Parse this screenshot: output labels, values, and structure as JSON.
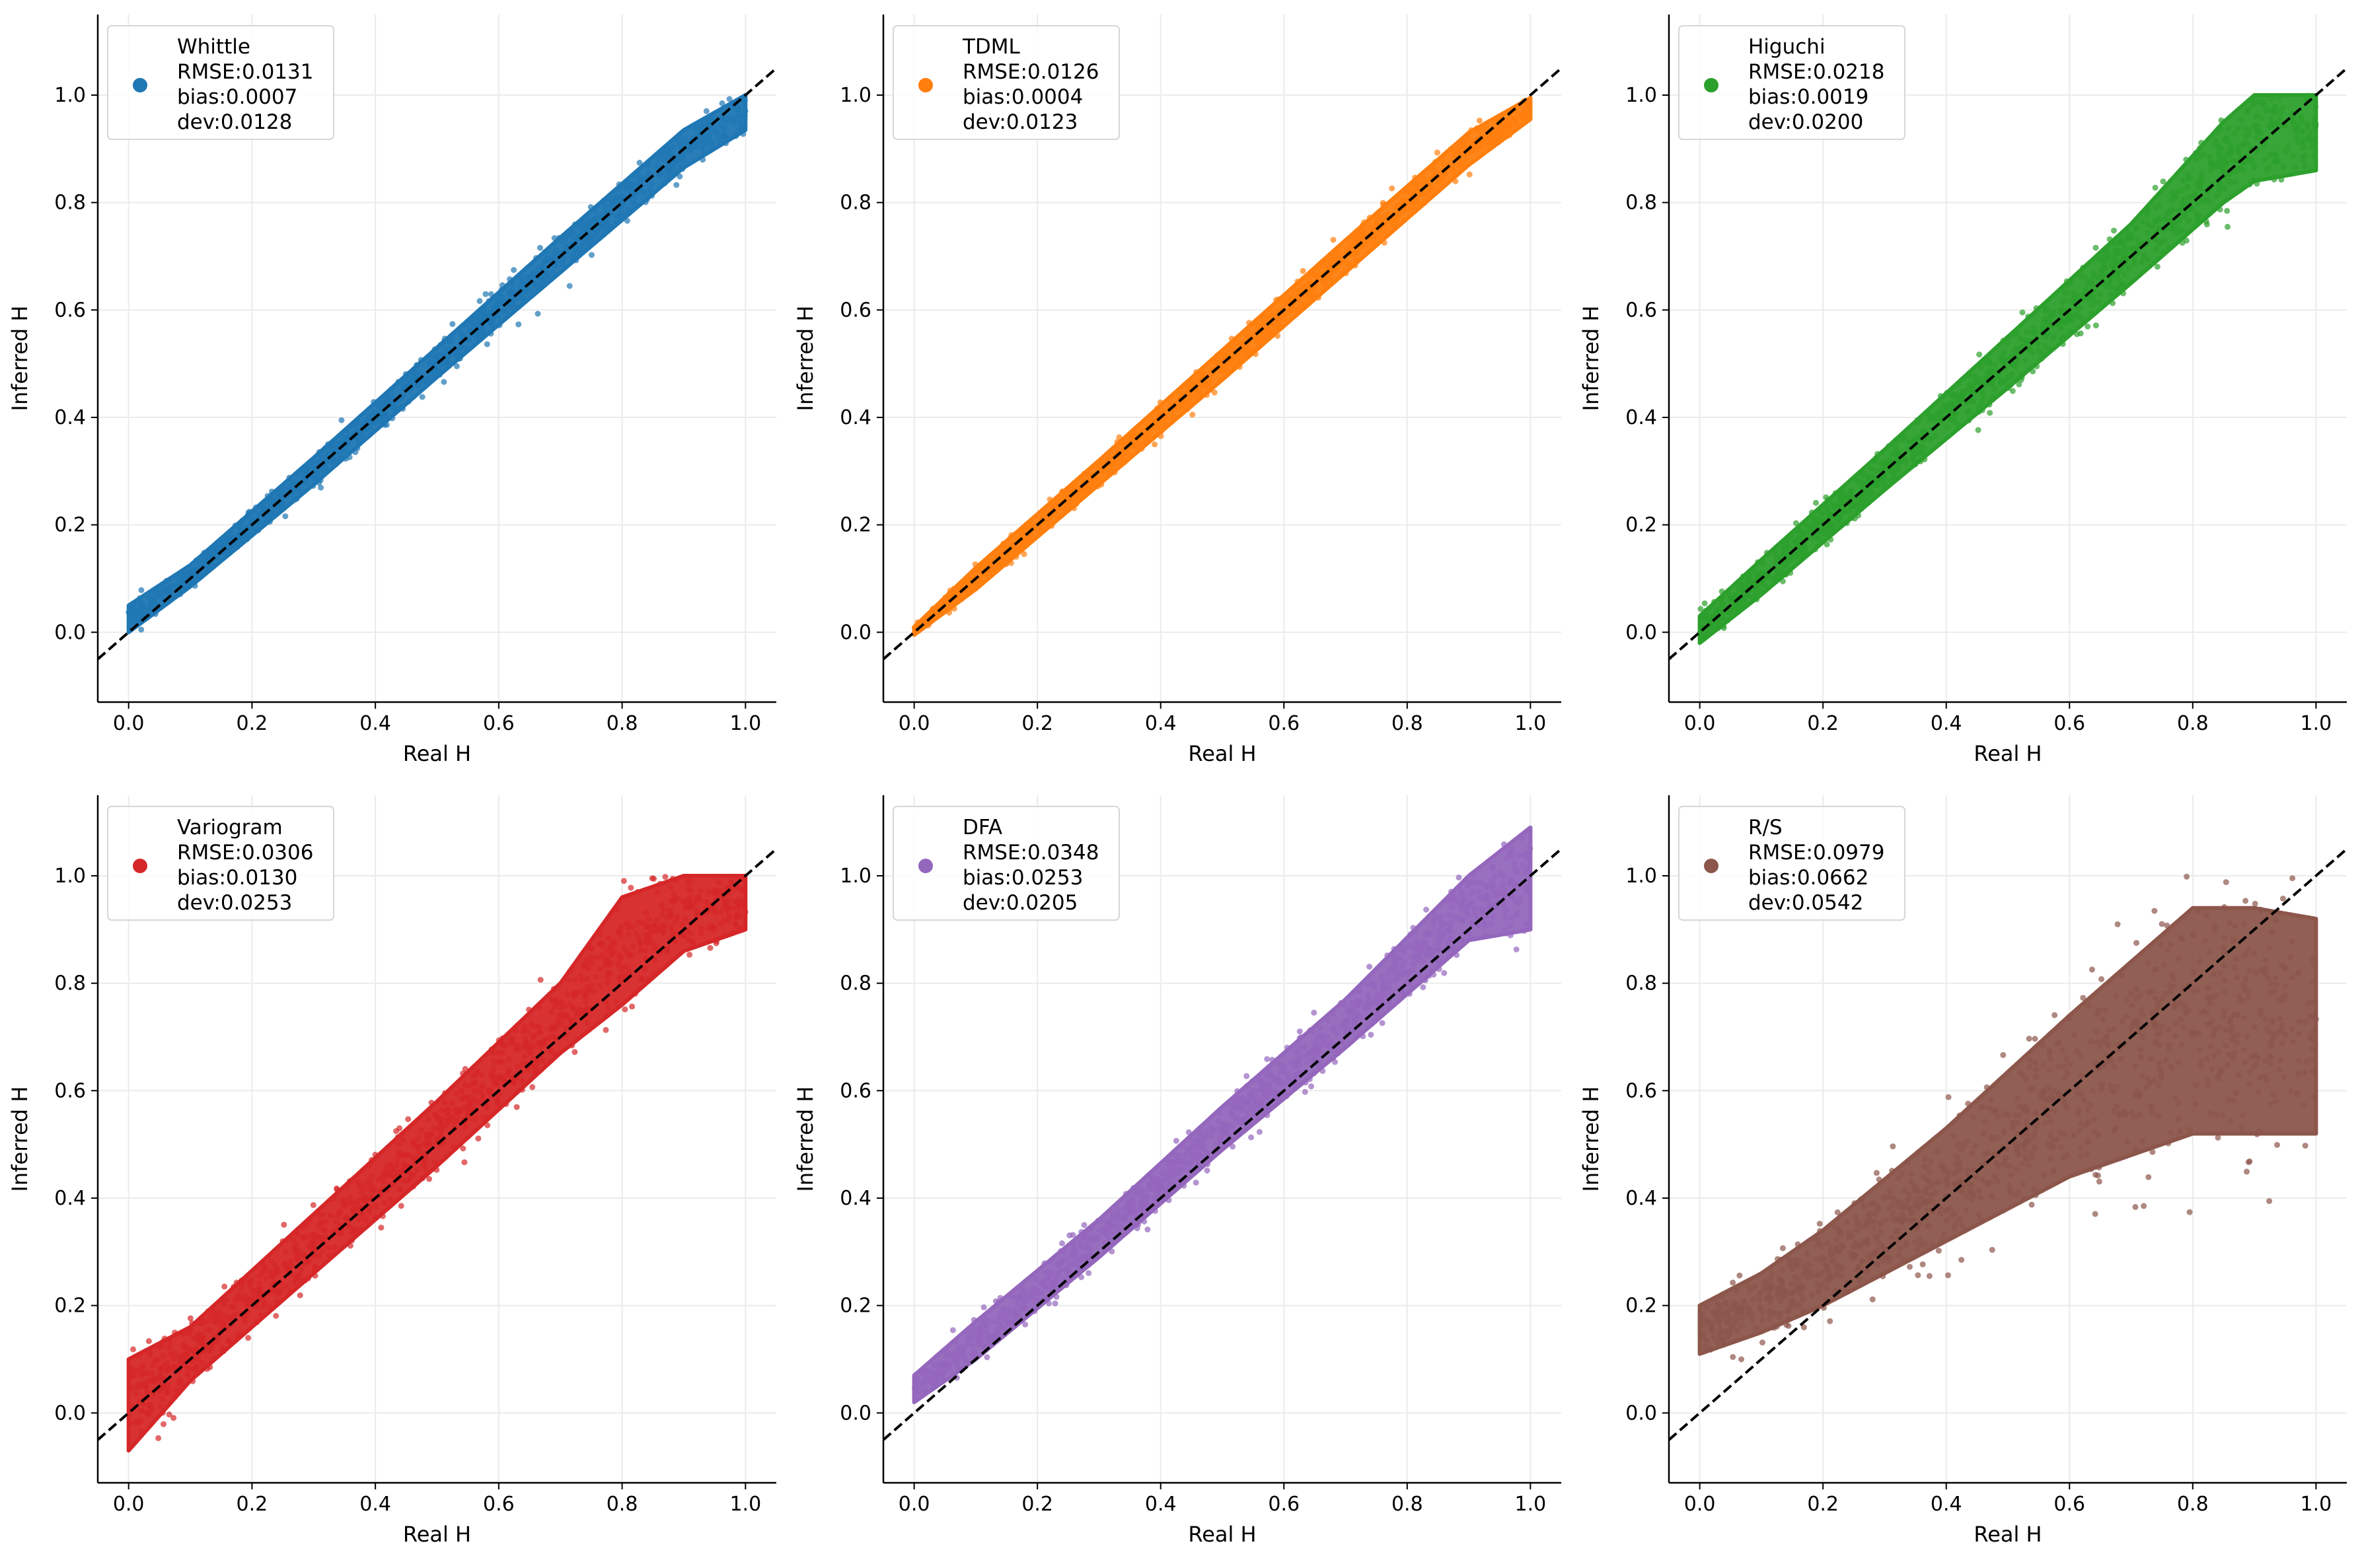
{
  "figure": {
    "background": "#ffffff"
  },
  "chart_data": [
    {
      "type": "scatter",
      "xlabel": "Real H",
      "ylabel": "Inferred H",
      "xlim": [
        -0.05,
        1.05
      ],
      "ylim": [
        -0.13,
        1.15
      ],
      "x_ticks": [
        "0.0",
        "0.2",
        "0.4",
        "0.6",
        "0.8",
        "1.0"
      ],
      "y_ticks": [
        "0.0",
        "0.2",
        "0.4",
        "0.6",
        "0.8",
        "1.0"
      ],
      "grid": true,
      "reference_line": {
        "style": "dashed",
        "color": "#000000",
        "from": [
          -0.05,
          -0.05
        ],
        "to": [
          1.05,
          1.05
        ]
      },
      "legend": {
        "position": "top-left",
        "name": "Whittle",
        "lines": [
          "RMSE:0.0131",
          "bias:0.0007",
          "dev:0.0128"
        ]
      },
      "color": "#1f77b4",
      "band": [
        {
          "x": 0.0,
          "low": 0.0,
          "high": 0.05
        },
        {
          "x": 0.1,
          "low": 0.085,
          "high": 0.125
        },
        {
          "x": 0.3,
          "low": 0.275,
          "high": 0.325
        },
        {
          "x": 0.5,
          "low": 0.475,
          "high": 0.53
        },
        {
          "x": 0.7,
          "low": 0.67,
          "high": 0.735
        },
        {
          "x": 0.9,
          "low": 0.865,
          "high": 0.935
        },
        {
          "x": 1.0,
          "low": 0.935,
          "high": 1.0
        }
      ]
    },
    {
      "type": "scatter",
      "xlabel": "Real H",
      "ylabel": "Inferred H",
      "xlim": [
        -0.05,
        1.05
      ],
      "ylim": [
        -0.13,
        1.15
      ],
      "x_ticks": [
        "0.0",
        "0.2",
        "0.4",
        "0.6",
        "0.8",
        "1.0"
      ],
      "y_ticks": [
        "0.0",
        "0.2",
        "0.4",
        "0.6",
        "0.8",
        "1.0"
      ],
      "grid": true,
      "reference_line": {
        "style": "dashed",
        "color": "#000000",
        "from": [
          -0.05,
          -0.05
        ],
        "to": [
          1.05,
          1.05
        ]
      },
      "legend": {
        "position": "top-left",
        "name": "TDML",
        "lines": [
          "RMSE:0.0126",
          "bias:0.0004",
          "dev:0.0123"
        ]
      },
      "color": "#ff7f0e",
      "band": [
        {
          "x": 0.0,
          "low": -0.005,
          "high": 0.01
        },
        {
          "x": 0.1,
          "low": 0.08,
          "high": 0.12
        },
        {
          "x": 0.3,
          "low": 0.275,
          "high": 0.32
        },
        {
          "x": 0.5,
          "low": 0.47,
          "high": 0.525
        },
        {
          "x": 0.7,
          "low": 0.67,
          "high": 0.73
        },
        {
          "x": 0.9,
          "low": 0.87,
          "high": 0.93
        },
        {
          "x": 1.0,
          "low": 0.955,
          "high": 0.995
        }
      ]
    },
    {
      "type": "scatter",
      "xlabel": "Real H",
      "ylabel": "Inferred H",
      "xlim": [
        -0.05,
        1.05
      ],
      "ylim": [
        -0.13,
        1.15
      ],
      "x_ticks": [
        "0.0",
        "0.2",
        "0.4",
        "0.6",
        "0.8",
        "1.0"
      ],
      "y_ticks": [
        "0.0",
        "0.2",
        "0.4",
        "0.6",
        "0.8",
        "1.0"
      ],
      "grid": true,
      "reference_line": {
        "style": "dashed",
        "color": "#000000",
        "from": [
          -0.05,
          -0.05
        ],
        "to": [
          1.05,
          1.05
        ]
      },
      "legend": {
        "position": "top-left",
        "name": "Higuchi",
        "lines": [
          "RMSE:0.0218",
          "bias:0.0019",
          "dev:0.0200"
        ]
      },
      "color": "#2ca02c",
      "band": [
        {
          "x": 0.0,
          "low": -0.02,
          "high": 0.03
        },
        {
          "x": 0.1,
          "low": 0.07,
          "high": 0.135
        },
        {
          "x": 0.3,
          "low": 0.265,
          "high": 0.34
        },
        {
          "x": 0.5,
          "low": 0.455,
          "high": 0.55
        },
        {
          "x": 0.7,
          "low": 0.65,
          "high": 0.76
        },
        {
          "x": 0.85,
          "low": 0.8,
          "high": 0.95
        },
        {
          "x": 0.9,
          "low": 0.84,
          "high": 1.0
        },
        {
          "x": 1.0,
          "low": 0.86,
          "high": 1.0
        }
      ]
    },
    {
      "type": "scatter",
      "xlabel": "Real H",
      "ylabel": "Inferred H",
      "xlim": [
        -0.05,
        1.05
      ],
      "ylim": [
        -0.13,
        1.15
      ],
      "x_ticks": [
        "0.0",
        "0.2",
        "0.4",
        "0.6",
        "0.8",
        "1.0"
      ],
      "y_ticks": [
        "0.0",
        "0.2",
        "0.4",
        "0.6",
        "0.8",
        "1.0"
      ],
      "grid": true,
      "reference_line": {
        "style": "dashed",
        "color": "#000000",
        "from": [
          -0.05,
          -0.05
        ],
        "to": [
          1.05,
          1.05
        ]
      },
      "legend": {
        "position": "top-left",
        "name": "Variogram",
        "lines": [
          "RMSE:0.0306",
          "bias:0.0130",
          "dev:0.0253"
        ]
      },
      "color": "#d62728",
      "band": [
        {
          "x": 0.0,
          "low": -0.07,
          "high": 0.1
        },
        {
          "x": 0.1,
          "low": 0.06,
          "high": 0.16
        },
        {
          "x": 0.3,
          "low": 0.26,
          "high": 0.37
        },
        {
          "x": 0.5,
          "low": 0.46,
          "high": 0.58
        },
        {
          "x": 0.7,
          "low": 0.67,
          "high": 0.8
        },
        {
          "x": 0.8,
          "low": 0.76,
          "high": 0.96
        },
        {
          "x": 0.9,
          "low": 0.86,
          "high": 1.0
        },
        {
          "x": 1.0,
          "low": 0.9,
          "high": 1.0
        }
      ]
    },
    {
      "type": "scatter",
      "xlabel": "Real H",
      "ylabel": "Inferred H",
      "xlim": [
        -0.05,
        1.05
      ],
      "ylim": [
        -0.13,
        1.15
      ],
      "x_ticks": [
        "0.0",
        "0.2",
        "0.4",
        "0.6",
        "0.8",
        "1.0"
      ],
      "y_ticks": [
        "0.0",
        "0.2",
        "0.4",
        "0.6",
        "0.8",
        "1.0"
      ],
      "grid": true,
      "reference_line": {
        "style": "dashed",
        "color": "#000000",
        "from": [
          -0.05,
          -0.05
        ],
        "to": [
          1.05,
          1.05
        ]
      },
      "legend": {
        "position": "top-left",
        "name": "DFA",
        "lines": [
          "RMSE:0.0348",
          "bias:0.0253",
          "dev:0.0205"
        ]
      },
      "color": "#9467bd",
      "band": [
        {
          "x": 0.0,
          "low": 0.02,
          "high": 0.07
        },
        {
          "x": 0.1,
          "low": 0.1,
          "high": 0.17
        },
        {
          "x": 0.3,
          "low": 0.29,
          "high": 0.36
        },
        {
          "x": 0.5,
          "low": 0.49,
          "high": 0.57
        },
        {
          "x": 0.7,
          "low": 0.68,
          "high": 0.77
        },
        {
          "x": 0.9,
          "low": 0.88,
          "high": 1.0
        },
        {
          "x": 1.0,
          "low": 0.9,
          "high": 1.09
        }
      ]
    },
    {
      "type": "scatter",
      "xlabel": "Real H",
      "ylabel": "Inferred H",
      "xlim": [
        -0.05,
        1.05
      ],
      "ylim": [
        -0.13,
        1.15
      ],
      "x_ticks": [
        "0.0",
        "0.2",
        "0.4",
        "0.6",
        "0.8",
        "1.0"
      ],
      "y_ticks": [
        "0.0",
        "0.2",
        "0.4",
        "0.6",
        "0.8",
        "1.0"
      ],
      "grid": true,
      "reference_line": {
        "style": "dashed",
        "color": "#000000",
        "from": [
          -0.05,
          -0.05
        ],
        "to": [
          1.05,
          1.05
        ]
      },
      "legend": {
        "position": "top-left",
        "name": "R/S",
        "lines": [
          "RMSE:0.0979",
          "bias:0.0662",
          "dev:0.0542"
        ]
      },
      "color": "#8c564b",
      "band": [
        {
          "x": 0.0,
          "low": 0.11,
          "high": 0.2
        },
        {
          "x": 0.1,
          "low": 0.15,
          "high": 0.26
        },
        {
          "x": 0.2,
          "low": 0.2,
          "high": 0.34
        },
        {
          "x": 0.4,
          "low": 0.32,
          "high": 0.53
        },
        {
          "x": 0.6,
          "low": 0.44,
          "high": 0.74
        },
        {
          "x": 0.8,
          "low": 0.52,
          "high": 0.94
        },
        {
          "x": 0.9,
          "low": 0.52,
          "high": 0.94
        },
        {
          "x": 1.0,
          "low": 0.52,
          "high": 0.92
        }
      ]
    }
  ]
}
